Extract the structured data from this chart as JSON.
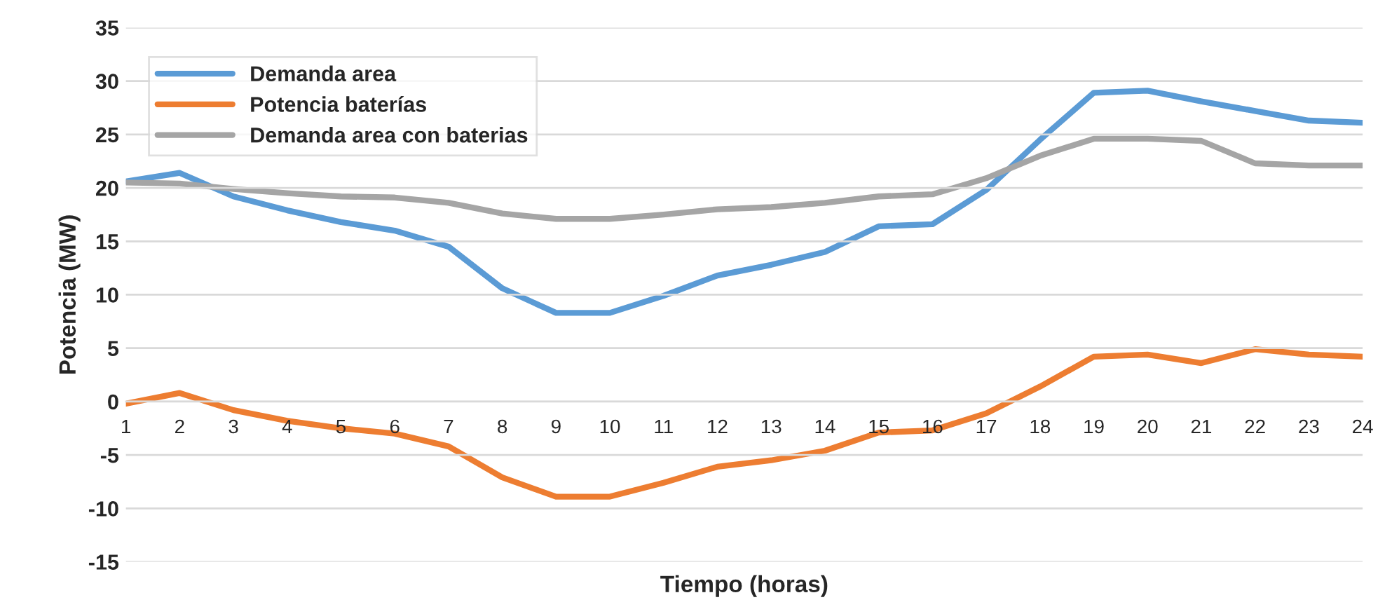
{
  "chart_data": {
    "type": "line",
    "xlabel": "Tiempo (horas)",
    "ylabel": "Potencia (MW)",
    "categories": [
      "1",
      "2",
      "3",
      "4",
      "5",
      "6",
      "7",
      "8",
      "9",
      "10",
      "11",
      "12",
      "13",
      "14",
      "15",
      "16",
      "17",
      "18",
      "19",
      "20",
      "21",
      "22",
      "23",
      "24"
    ],
    "series": [
      {
        "name": "Demanda area",
        "color": "#5b9bd5",
        "values": [
          20.6,
          21.4,
          19.2,
          17.9,
          16.8,
          16.0,
          14.5,
          10.6,
          8.3,
          8.3,
          9.9,
          11.8,
          12.8,
          14.0,
          16.4,
          16.6,
          19.8,
          24.5,
          28.9,
          29.1,
          28.1,
          27.2,
          26.3,
          26.1
        ]
      },
      {
        "name": "Potencia baterías",
        "color": "#ed7d31",
        "values": [
          -0.2,
          0.8,
          -0.8,
          -1.8,
          -2.5,
          -3.0,
          -4.2,
          -7.1,
          -8.9,
          -8.9,
          -7.6,
          -6.1,
          -5.5,
          -4.6,
          -2.9,
          -2.7,
          -1.1,
          1.4,
          4.2,
          4.4,
          3.6,
          4.9,
          4.4,
          4.2
        ]
      },
      {
        "name": "Demanda area con baterias",
        "color": "#a5a5a5",
        "values": [
          20.5,
          20.4,
          19.9,
          19.5,
          19.2,
          19.1,
          18.6,
          17.6,
          17.1,
          17.1,
          17.5,
          18.0,
          18.2,
          18.6,
          19.2,
          19.4,
          20.9,
          23.0,
          24.6,
          24.6,
          24.4,
          22.3,
          22.1,
          22.1
        ]
      }
    ],
    "ylim": [
      -15,
      35
    ],
    "yticks": [
      -15,
      -10,
      -5,
      0,
      5,
      10,
      15,
      20,
      25,
      30,
      35
    ],
    "grid": "y",
    "legend": "top left",
    "marker": "none",
    "line_style": "solid"
  }
}
